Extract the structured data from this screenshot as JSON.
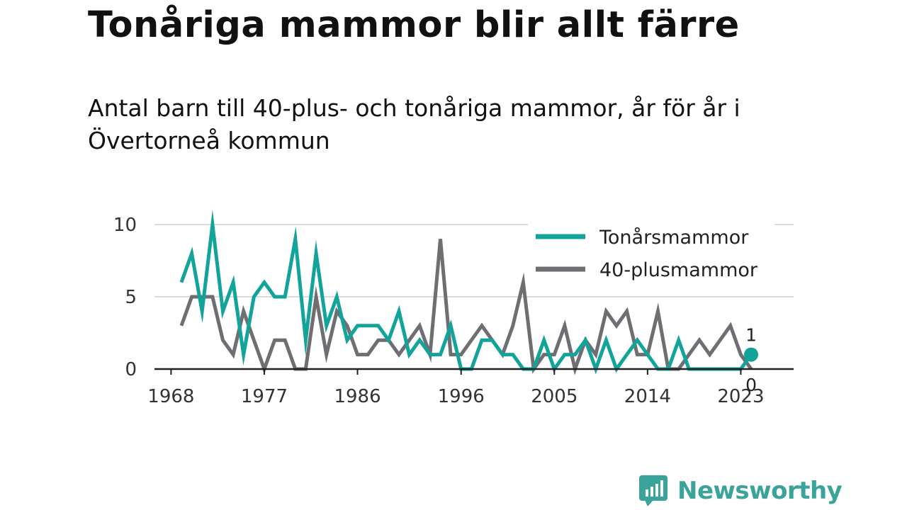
{
  "header": {
    "title": "Tonåriga mammor blir allt färre",
    "subtitle": "Antal barn till 40-plus- och tonåriga mammor, år för år i Övertorneå kommun"
  },
  "brand": {
    "name": "Newsworthy",
    "icon": "bar-chart-speech-bubble-icon",
    "color": "#3aa39a"
  },
  "chart_data": {
    "type": "line",
    "x": [
      1969,
      1970,
      1971,
      1972,
      1973,
      1974,
      1975,
      1976,
      1977,
      1978,
      1979,
      1980,
      1981,
      1982,
      1983,
      1984,
      1985,
      1986,
      1987,
      1988,
      1989,
      1990,
      1991,
      1992,
      1993,
      1994,
      1995,
      1996,
      1997,
      1998,
      1999,
      2000,
      2001,
      2002,
      2003,
      2004,
      2005,
      2006,
      2007,
      2008,
      2009,
      2010,
      2011,
      2012,
      2013,
      2014,
      2015,
      2016,
      2017,
      2018,
      2019,
      2020,
      2021,
      2022,
      2023,
      2024
    ],
    "series": [
      {
        "name": "Tonårsmammor",
        "color": "#12a39a",
        "values": [
          6,
          8,
          4,
          10,
          4,
          6,
          1,
          5,
          6,
          5,
          5,
          9,
          2,
          8,
          3,
          5,
          2,
          3,
          3,
          3,
          2,
          4,
          1,
          2,
          1,
          1,
          3,
          0,
          0,
          2,
          2,
          1,
          1,
          0,
          0,
          2,
          0,
          1,
          1,
          2,
          0,
          2,
          0,
          1,
          2,
          1,
          0,
          0,
          2,
          0,
          0,
          0,
          0,
          0,
          0,
          1
        ]
      },
      {
        "name": "40-plusmammor",
        "color": "#6f6e73",
        "values": [
          3,
          5,
          5,
          5,
          2,
          1,
          4,
          2,
          0,
          2,
          2,
          0,
          0,
          5,
          1,
          4,
          3,
          1,
          1,
          2,
          2,
          1,
          2,
          3,
          1,
          9,
          1,
          1,
          2,
          3,
          2,
          1,
          3,
          6,
          0,
          1,
          1,
          3,
          0,
          2,
          1,
          4,
          3,
          4,
          1,
          1,
          4,
          0,
          0,
          1,
          2,
          1,
          2,
          3,
          1,
          0
        ]
      }
    ],
    "x_ticks": [
      "1968",
      "1977",
      "1986",
      "1996",
      "2005",
      "2014",
      "2023"
    ],
    "y_ticks": [
      "0",
      "5",
      "10"
    ],
    "ylim": [
      0,
      10
    ],
    "grid": true,
    "legend_position": "top-right",
    "end_labels": [
      "1",
      "0"
    ]
  }
}
